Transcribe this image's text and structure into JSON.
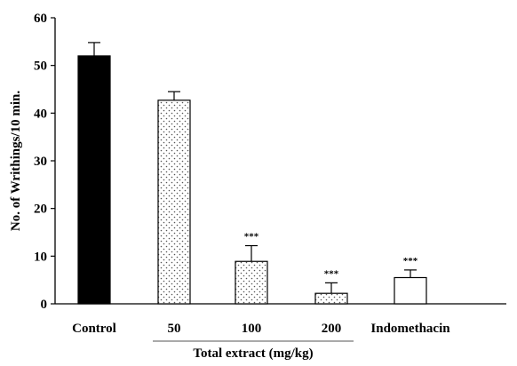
{
  "chart_data": {
    "type": "bar",
    "ylabel": "No. of Writhings/10 min.",
    "xlabel": "Total extract (mg/kg)",
    "ylim": [
      0,
      60
    ],
    "yticks": [
      0,
      10,
      20,
      30,
      40,
      50,
      60
    ],
    "categories": [
      "Control",
      "50",
      "100",
      "200",
      "Indomethacin"
    ],
    "values": [
      52,
      42.7,
      8.9,
      2.2,
      5.5
    ],
    "errors": [
      2.8,
      1.8,
      3.3,
      2.2,
      1.6
    ],
    "significance": [
      "",
      "",
      "***",
      "***",
      "***"
    ],
    "bar_fill": [
      "solid-black",
      "dotted",
      "dotted",
      "dotted",
      "white"
    ],
    "bracket_group": [
      "50",
      "100",
      "200"
    ],
    "grid": false,
    "colors": {
      "axis": "#000000",
      "bar_solid": "#000000",
      "bar_open": "#ffffff"
    }
  }
}
